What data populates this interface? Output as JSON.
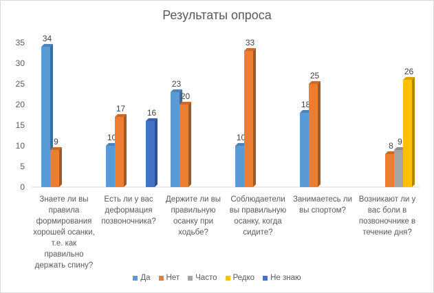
{
  "chart_data": {
    "type": "bar",
    "title": "Результаты опроса",
    "categories": [
      "Знаете ли вы правила формирования хорошей осанки, т.е. как правильно держать спину?",
      "Есть ли у вас деформация позвоночника?",
      "Держите ли вы правильную осанку при ходьбе?",
      "Соблюдаетели вы правильную осанку, когда сидите?",
      "Занимаетесь ли вы спортом?",
      "Возникают ли у вас боли в позвоночнике в течение дня?"
    ],
    "series": [
      {
        "name": "Да",
        "color": "#5b9bd5",
        "values": [
          34,
          10,
          23,
          10,
          18,
          null
        ]
      },
      {
        "name": "Нет",
        "color": "#ed7d31",
        "values": [
          9,
          17,
          20,
          33,
          25,
          8
        ]
      },
      {
        "name": "Часто",
        "color": "#a5a5a5",
        "values": [
          null,
          null,
          null,
          null,
          null,
          9
        ]
      },
      {
        "name": "Редко",
        "color": "#ffc000",
        "values": [
          null,
          null,
          null,
          null,
          null,
          26
        ]
      },
      {
        "name": "Не знаю",
        "color": "#4472c4",
        "values": [
          null,
          16,
          null,
          null,
          null,
          null
        ]
      }
    ],
    "ylim": [
      0,
      35
    ],
    "yticks": [
      0,
      5,
      10,
      15,
      20,
      25,
      30,
      35
    ],
    "grid": false,
    "legend_position": "bottom",
    "xlabel": "",
    "ylabel": ""
  }
}
